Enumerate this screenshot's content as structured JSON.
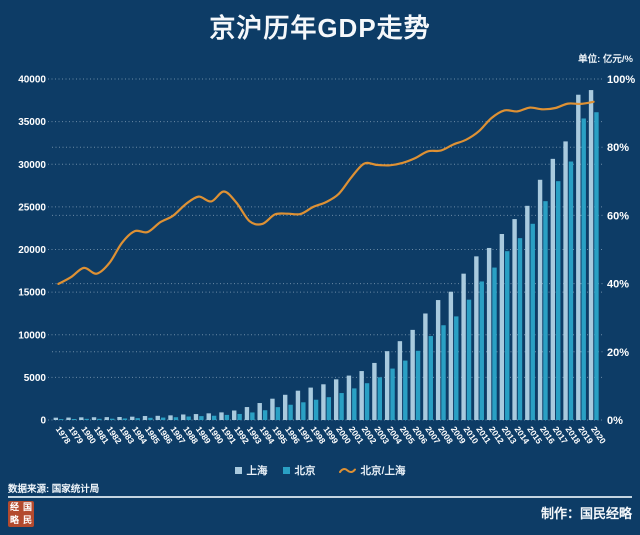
{
  "title": "京沪历年GDP走势",
  "unit_label": "单位: 亿元/%",
  "legend": {
    "shanghai_label": "上海",
    "beijing_label": "北京",
    "ratio_label": "北京/上海"
  },
  "footer": {
    "source": "数据来源: 国家统计局",
    "credit": "制作：国民经略",
    "seal_chars": [
      "经",
      "国",
      "略",
      "民"
    ]
  },
  "colors": {
    "background": "#0d3c66",
    "shanghai_bar": "#a9cade",
    "beijing_bar": "#2aa0c4",
    "ratio_line": "#de9134",
    "grid": "rgba(222,236,246,0.45)",
    "text": "#ffffff"
  },
  "chart_data": {
    "type": "bar",
    "title": "京沪历年GDP走势",
    "xlabel": "",
    "ylabel_left": "亿元",
    "ylabel_right": "%",
    "grid": "dotted",
    "legend_position": "bottom",
    "left_axis": {
      "min": 0,
      "max": 40000,
      "ticks": [
        0,
        5000,
        10000,
        15000,
        20000,
        25000,
        30000,
        35000,
        40000
      ]
    },
    "right_axis": {
      "min": 0,
      "max": 100,
      "ticks": [
        0,
        20,
        40,
        60,
        80,
        100
      ],
      "suffix": "%"
    },
    "categories": [
      "1978",
      "1979",
      "1980",
      "1981",
      "1982",
      "1983",
      "1984",
      "1985",
      "1986",
      "1987",
      "1988",
      "1989",
      "1990",
      "1991",
      "1992",
      "1993",
      "1994",
      "1995",
      "1996",
      "1997",
      "1998",
      "1999",
      "2000",
      "2001",
      "2002",
      "2003",
      "2004",
      "2005",
      "2006",
      "2007",
      "2008",
      "2009",
      "2010",
      "2011",
      "2012",
      "2013",
      "2014",
      "2015",
      "2016",
      "2017",
      "2018",
      "2019",
      "2020"
    ],
    "series": [
      {
        "name": "上海",
        "type": "bar",
        "axis": "left",
        "values": [
          272.8,
          286.4,
          311.9,
          324.8,
          337.1,
          351.8,
          390.9,
          466.8,
          490.8,
          545.5,
          648.3,
          696.5,
          781.7,
          893.8,
          1114.3,
          1519.2,
          1990.9,
          2499.4,
          2957.6,
          3438.8,
          3801.1,
          4188.7,
          4771.2,
          5210.1,
          5741.0,
          6694.2,
          8072.8,
          9247.7,
          10572.2,
          12494.0,
          14069.9,
          15046.5,
          17166.0,
          19195.7,
          20181.7,
          21818.2,
          23567.7,
          25123.5,
          28178.7,
          30633.0,
          32679.9,
          38155.3,
          38700.6
        ]
      },
      {
        "name": "北京",
        "type": "bar",
        "axis": "left",
        "values": [
          108.8,
          120.1,
          139.1,
          139.2,
          154.9,
          183.1,
          216.6,
          257.1,
          284.9,
          326.8,
          410.2,
          456.0,
          500.8,
          598.9,
          709.1,
          886.2,
          1145.3,
          1507.7,
          1789.2,
          2075.6,
          2376.0,
          2677.6,
          3161.7,
          3708.0,
          4315.0,
          5007.2,
          6033.2,
          6969.5,
          8117.8,
          9846.8,
          11115.0,
          12153.0,
          14113.6,
          16251.9,
          17879.4,
          19800.8,
          21330.8,
          23014.6,
          25669.1,
          28014.9,
          30320.0,
          35371.3,
          36102.6
        ]
      },
      {
        "name": "北京/上海",
        "type": "line",
        "axis": "right",
        "values": [
          39.9,
          41.9,
          44.6,
          42.9,
          46.0,
          52.0,
          55.4,
          55.1,
          58.0,
          59.9,
          63.3,
          65.5,
          64.1,
          67.0,
          63.6,
          58.3,
          57.5,
          60.3,
          60.5,
          60.4,
          62.5,
          63.9,
          66.3,
          71.2,
          75.2,
          74.8,
          74.7,
          75.4,
          76.8,
          78.8,
          79.0,
          80.8,
          82.2,
          84.7,
          88.6,
          90.8,
          90.5,
          91.6,
          91.1,
          91.5,
          92.8,
          92.7,
          93.3
        ]
      }
    ]
  }
}
